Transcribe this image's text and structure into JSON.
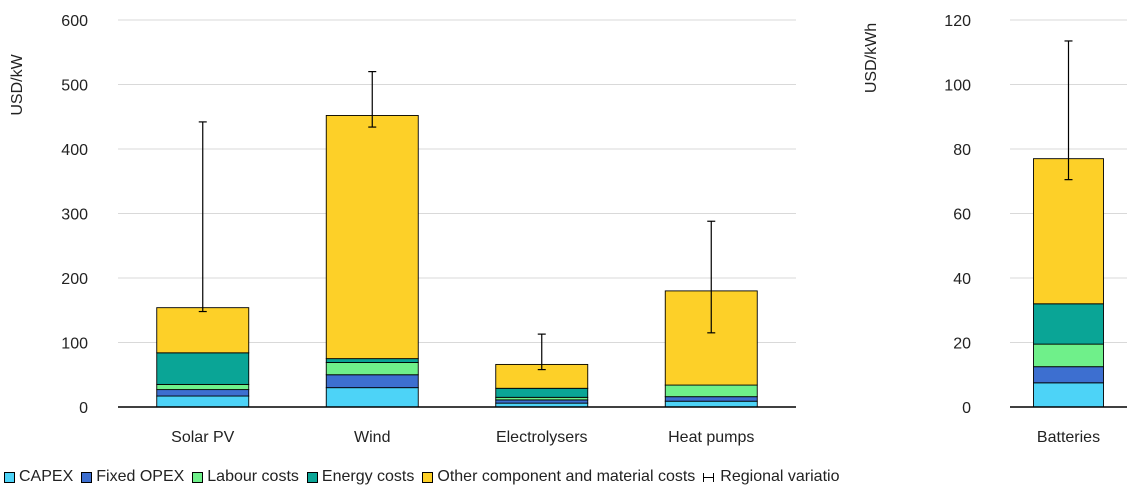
{
  "colors": {
    "CAPEX": "#4dd3f7",
    "Fixed OPEX": "#3d6fd0",
    "Labour costs": "#6ff08a",
    "Energy costs": "#0aa596",
    "Other component and material costs": "#fdd028"
  },
  "legend": {
    "items": [
      {
        "label": "CAPEX",
        "kind": "box"
      },
      {
        "label": "Fixed OPEX",
        "kind": "box"
      },
      {
        "label": "Labour costs",
        "kind": "box"
      },
      {
        "label": "Energy costs",
        "kind": "box"
      },
      {
        "label": "Other component and material costs",
        "kind": "box"
      },
      {
        "label": "Regional variatio",
        "kind": "errorbar"
      }
    ],
    "placement": "bottom"
  },
  "chart_data": [
    {
      "type": "bar",
      "stacked": true,
      "ylabel": "USD/kW",
      "ylim": [
        0,
        600
      ],
      "yticks": [
        0,
        100,
        200,
        300,
        400,
        500,
        600
      ],
      "grid": true,
      "categories": [
        "Solar PV",
        "Wind",
        "Electrolysers",
        "Heat pumps"
      ],
      "series": [
        {
          "name": "CAPEX",
          "values": [
            17,
            30,
            6,
            9
          ]
        },
        {
          "name": "Fixed OPEX",
          "values": [
            10,
            20,
            5,
            7
          ]
        },
        {
          "name": "Labour costs",
          "values": [
            8,
            19,
            4,
            18
          ]
        },
        {
          "name": "Energy costs",
          "values": [
            49,
            6,
            14,
            0
          ]
        },
        {
          "name": "Other component and material costs",
          "values": [
            70,
            377,
            37,
            146
          ]
        }
      ],
      "error_range": [
        [
          148,
          442
        ],
        [
          434,
          520
        ],
        [
          58,
          113
        ],
        [
          115,
          288
        ]
      ]
    },
    {
      "type": "bar",
      "stacked": true,
      "ylabel": "USD/kWh",
      "ylim": [
        0,
        120
      ],
      "yticks": [
        0,
        20,
        40,
        60,
        80,
        100,
        120
      ],
      "grid": true,
      "categories": [
        "Batteries"
      ],
      "series": [
        {
          "name": "CAPEX",
          "values": [
            7.5
          ]
        },
        {
          "name": "Fixed OPEX",
          "values": [
            5
          ]
        },
        {
          "name": "Labour costs",
          "values": [
            7
          ]
        },
        {
          "name": "Energy costs",
          "values": [
            12.5
          ]
        },
        {
          "name": "Other component and material costs",
          "values": [
            45
          ]
        }
      ],
      "error_range": [
        [
          70.5,
          113.5
        ]
      ]
    }
  ]
}
